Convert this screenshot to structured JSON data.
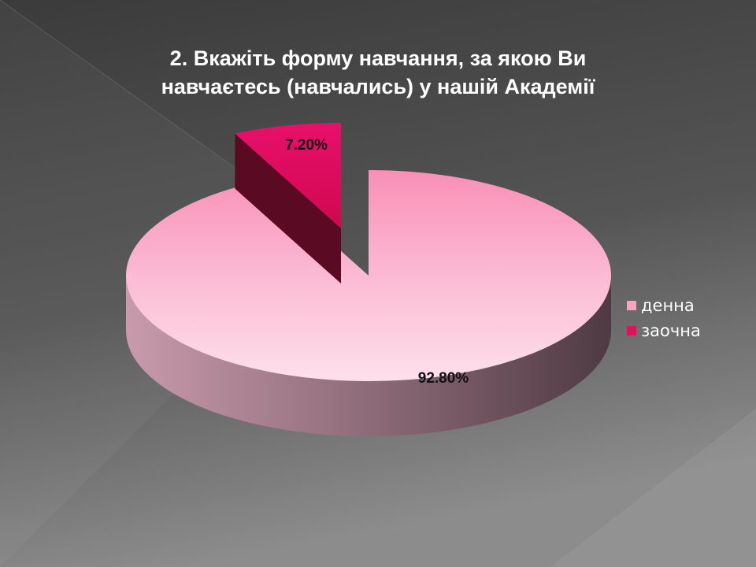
{
  "chart_data": {
    "type": "pie",
    "title_lines": [
      "2. Вкажіть форму навчання, за якою Ви",
      "навчаєтесь (навчались) у нашій Академії"
    ],
    "slices": [
      {
        "name": "денна",
        "value": 92.8,
        "label": "92.80%",
        "color": "#f9a3c3"
      },
      {
        "name": "заочна",
        "value": 7.2,
        "label": "7.20%",
        "color": "#e0105a"
      }
    ],
    "legend_position": "right",
    "three_d": true,
    "exploded_slice": "заочна"
  },
  "colors": {
    "background_dark": "#3d3d3d",
    "background_light": "#8a8a8a",
    "text": "#ffffff",
    "data_label": "#111111"
  }
}
